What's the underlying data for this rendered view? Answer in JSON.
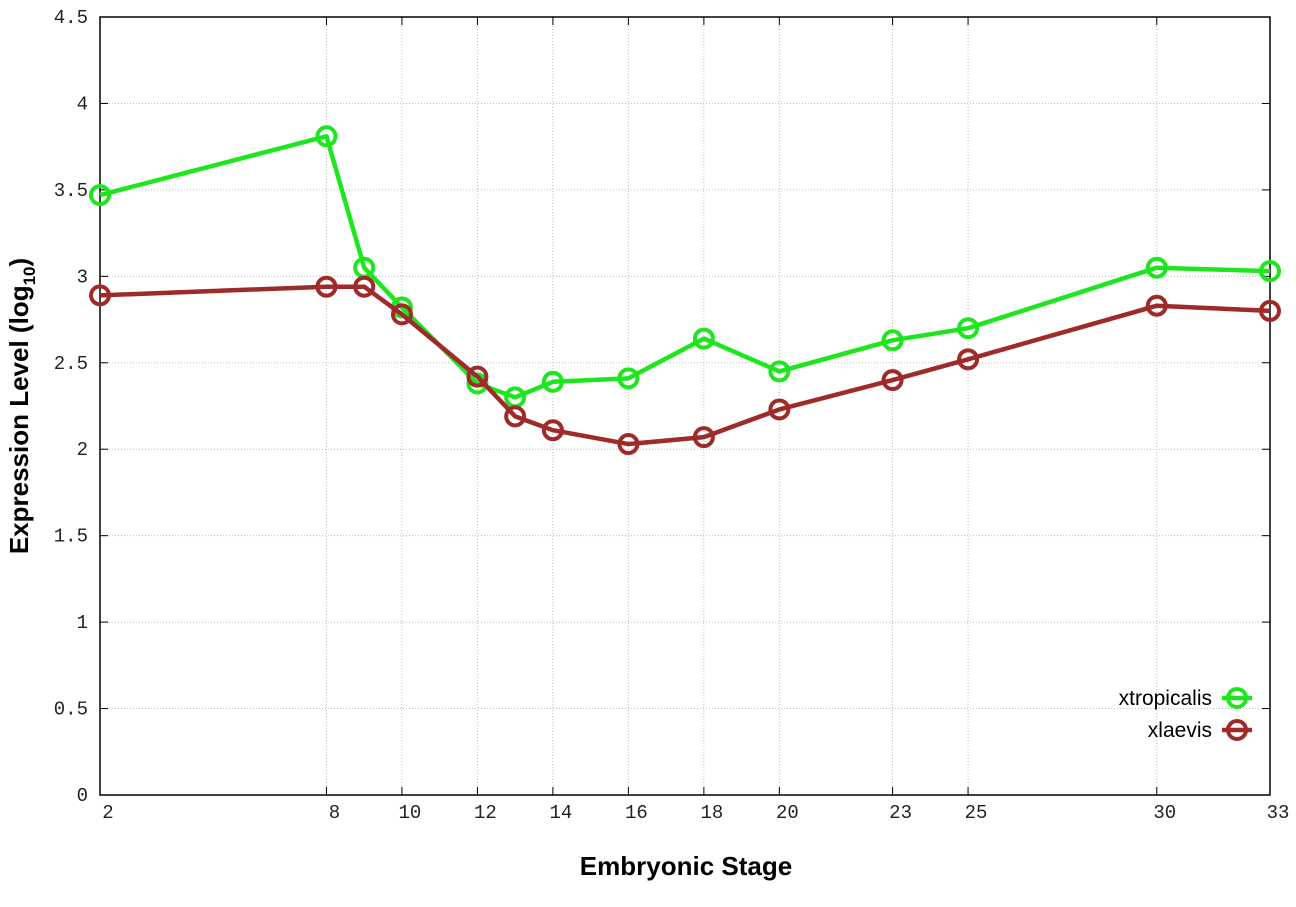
{
  "chart_data": {
    "type": "line",
    "xlabel": "Embryonic Stage",
    "ylabel_main": "Expression Level (log",
    "ylabel_sub": "10",
    "ylabel_close": ")",
    "x": [
      2,
      8,
      9,
      10,
      12,
      13,
      14,
      16,
      18,
      20,
      23,
      25,
      30,
      33
    ],
    "xticks": [
      "2",
      "8",
      "10",
      "12",
      "14",
      "16",
      "18",
      "20",
      "23",
      "25",
      "30",
      "33"
    ],
    "yticks": [
      "0",
      "0.5",
      "1",
      "1.5",
      "2",
      "2.5",
      "3",
      "3.5",
      "4",
      "4.5"
    ],
    "xlim": [
      2,
      33
    ],
    "ylim": [
      0,
      4.5
    ],
    "grid": true,
    "legend_position": "bottom-right",
    "series": [
      {
        "name": "xtropicalis",
        "color": "#1ee61e",
        "values": [
          3.47,
          3.81,
          3.05,
          2.82,
          2.38,
          2.3,
          2.39,
          2.41,
          2.64,
          2.45,
          2.63,
          2.7,
          3.05,
          3.03
        ]
      },
      {
        "name": "xlaevis",
        "color": "#9e2a2a",
        "values": [
          2.89,
          2.94,
          2.94,
          2.78,
          2.42,
          2.19,
          2.11,
          2.03,
          2.07,
          2.23,
          2.4,
          2.52,
          2.83,
          2.8
        ]
      }
    ]
  }
}
